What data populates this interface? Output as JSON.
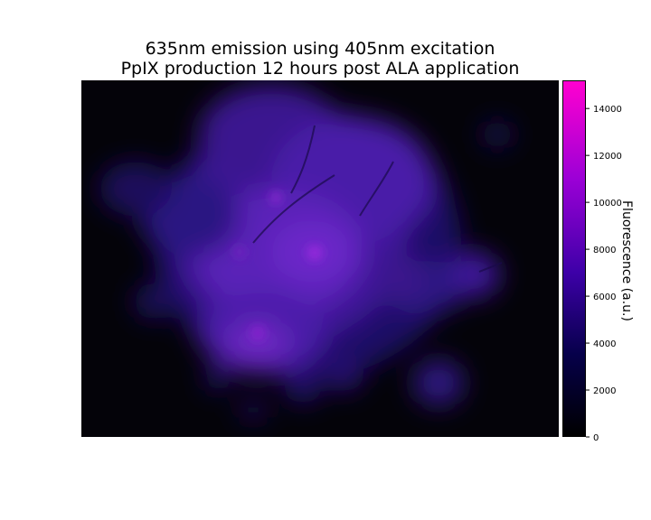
{
  "chart_data": {
    "type": "heatmap",
    "title_lines": [
      "635nm emission using 405nm excitation",
      "PpIX production 12 hours post ALA application"
    ],
    "colorbar": {
      "label": "Fluorescence (a.u.)",
      "range": [
        0,
        15200
      ],
      "ticks": [
        0,
        2000,
        4000,
        6000,
        8000,
        10000,
        12000,
        14000
      ],
      "tick_labels": [
        "0",
        "2000",
        "4000",
        "6000",
        "8000",
        "10000",
        "12000",
        "14000"
      ],
      "colormap_stops": [
        {
          "value": 0,
          "color": "#000000"
        },
        {
          "value": 3500,
          "color": "#06004a"
        },
        {
          "value": 7000,
          "color": "#3d00a8"
        },
        {
          "value": 11000,
          "color": "#9b00d6"
        },
        {
          "value": 15200,
          "color": "#ff00d0"
        }
      ]
    },
    "axes_visible": false
  }
}
